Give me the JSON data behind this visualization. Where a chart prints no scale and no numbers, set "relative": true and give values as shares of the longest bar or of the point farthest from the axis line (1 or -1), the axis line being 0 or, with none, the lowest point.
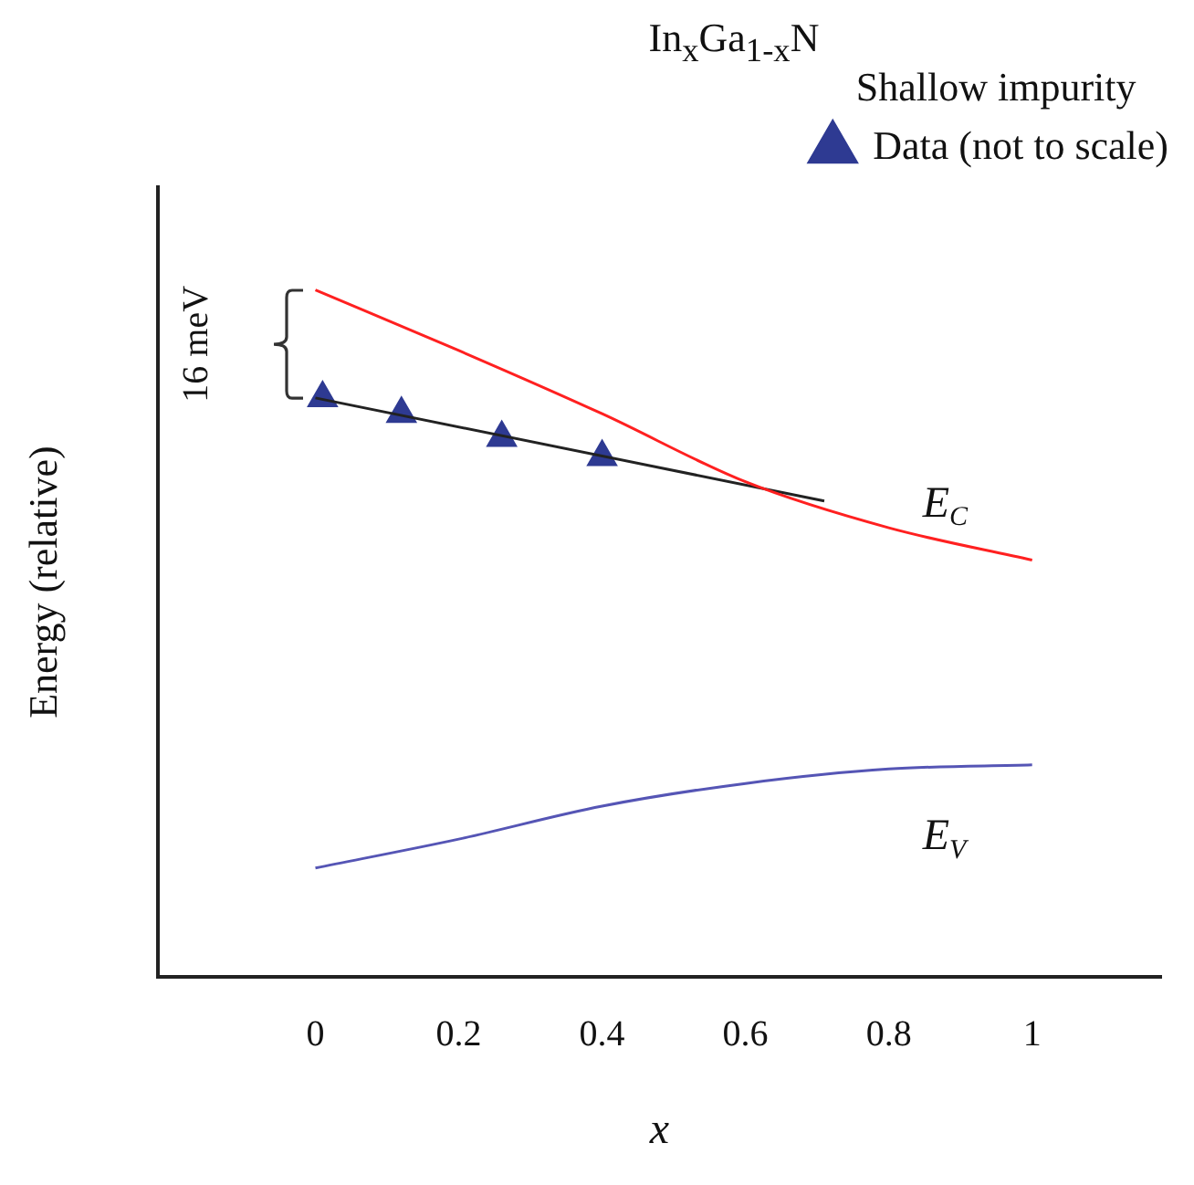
{
  "chart_data": {
    "type": "line",
    "title": "In$_{x}$Ga$_{1-x}$N",
    "xlabel": "x",
    "ylabel": "Energy (relative)",
    "legend_title": "Shallow impurity",
    "relative": true,
    "xlim": [
      -0.22,
      1.18
    ],
    "xticks": [
      0,
      0.2,
      0.4,
      0.6,
      0.8,
      1
    ],
    "grid": false,
    "legend": "top right",
    "series": [
      {
        "type": "line",
        "color": "#ff2020",
        "x": [
          0,
          0.2,
          0.4,
          0.6,
          0.8,
          1
        ],
        "values": [
          1.0,
          0.912,
          0.82,
          0.721,
          0.654,
          0.607
        ]
      },
      {
        "type": "line",
        "color": "#5555b5",
        "x": [
          0,
          0.2,
          0.4,
          0.6,
          0.8,
          1
        ],
        "values": [
          0.159,
          0.201,
          0.249,
          0.282,
          0.303,
          0.309
        ]
      },
      {
        "type": "line",
        "color": "#222222",
        "x": [
          0,
          0.71
        ],
        "values": [
          0.843,
          0.693
        ]
      },
      {
        "type": "scatter",
        "name": "Data (not to scale)",
        "color": "#2e3a92",
        "marker": "triangle",
        "x": [
          0.01,
          0.12,
          0.26,
          0.4
        ],
        "values": [
          0.843,
          0.82,
          0.785,
          0.757
        ]
      }
    ],
    "annotations": [
      "16 meV",
      "E$_{C}$",
      "E$_{V}$"
    ]
  }
}
